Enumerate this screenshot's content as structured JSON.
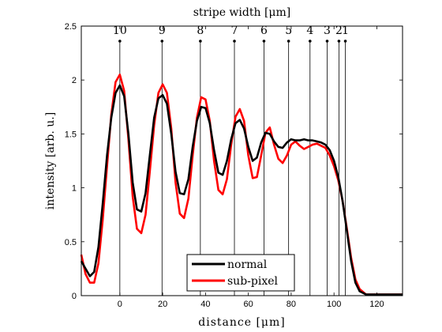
{
  "chart_data": {
    "type": "line",
    "xlabel": "distance [μm]",
    "ylabel": "intensity [arb. u.]",
    "top_axis_label": "stripe width [μm]",
    "xlim": [
      -18,
      132
    ],
    "ylim": [
      0,
      2.5
    ],
    "x_ticks": [
      0,
      20,
      40,
      60,
      80,
      100,
      120
    ],
    "y_ticks": [
      0,
      0.5,
      1,
      1.5,
      2,
      2.5
    ],
    "y_tick_labels": [
      "0",
      "0.5",
      "1",
      "1.5",
      "2",
      "2.5"
    ],
    "grid": false,
    "legend_position": "bottom-center",
    "stripe_markers": [
      {
        "label": "10",
        "x": 0
      },
      {
        "label": "9",
        "x": 19.7
      },
      {
        "label": "8",
        "x": 37.6
      },
      {
        "label": "7",
        "x": 53.5
      },
      {
        "label": "6",
        "x": 67.3
      },
      {
        "label": "5",
        "x": 78.8
      },
      {
        "label": "4",
        "x": 88.8
      },
      {
        "label": "3",
        "x": 96.8
      },
      {
        "label": "2",
        "x": 102.3
      },
      {
        "label": "1",
        "x": 105.3
      }
    ],
    "series": [
      {
        "name": "normal",
        "color": "#000000",
        "x": [
          -18,
          -16,
          -14,
          -12,
          -10,
          -8,
          -6,
          -4,
          -2,
          0,
          2,
          4,
          6,
          8,
          10,
          12,
          14,
          16,
          18,
          20,
          22,
          24,
          26,
          28,
          30,
          32,
          34,
          36,
          38,
          40,
          42,
          44,
          46,
          48,
          50,
          52,
          54,
          56,
          58,
          60,
          62,
          64,
          66,
          68,
          70,
          72,
          74,
          76,
          78,
          80,
          82,
          84,
          86,
          88,
          90,
          92,
          94,
          96,
          98,
          100,
          102,
          104,
          106,
          108,
          110,
          112,
          115,
          120,
          125,
          132
        ],
        "y": [
          0.32,
          0.25,
          0.18,
          0.22,
          0.45,
          0.85,
          1.3,
          1.65,
          1.88,
          1.95,
          1.85,
          1.5,
          1.05,
          0.8,
          0.78,
          0.95,
          1.3,
          1.65,
          1.83,
          1.86,
          1.78,
          1.5,
          1.15,
          0.95,
          0.94,
          1.08,
          1.38,
          1.62,
          1.75,
          1.74,
          1.6,
          1.35,
          1.14,
          1.12,
          1.25,
          1.45,
          1.6,
          1.63,
          1.55,
          1.38,
          1.25,
          1.28,
          1.42,
          1.51,
          1.5,
          1.43,
          1.38,
          1.37,
          1.42,
          1.45,
          1.44,
          1.44,
          1.45,
          1.44,
          1.44,
          1.43,
          1.42,
          1.4,
          1.35,
          1.25,
          1.1,
          0.88,
          0.6,
          0.32,
          0.12,
          0.04,
          0.01,
          0.01,
          0.01,
          0.01
        ]
      },
      {
        "name": "sub-pixel",
        "color": "#ff0000",
        "x": [
          -18,
          -16,
          -14,
          -12,
          -10,
          -8,
          -6,
          -4,
          -2,
          0,
          2,
          4,
          6,
          8,
          10,
          12,
          14,
          16,
          18,
          20,
          22,
          24,
          26,
          28,
          30,
          32,
          34,
          36,
          38,
          40,
          42,
          44,
          46,
          48,
          50,
          52,
          54,
          56,
          58,
          60,
          62,
          64,
          66,
          68,
          70,
          72,
          74,
          76,
          78,
          80,
          82,
          84,
          86,
          88,
          90,
          92,
          94,
          96,
          98,
          100,
          102,
          104,
          106,
          108,
          110,
          112,
          115,
          120,
          125,
          132
        ],
        "y": [
          0.38,
          0.2,
          0.12,
          0.12,
          0.3,
          0.7,
          1.2,
          1.68,
          1.98,
          2.05,
          1.9,
          1.45,
          0.92,
          0.62,
          0.58,
          0.75,
          1.15,
          1.58,
          1.88,
          1.96,
          1.88,
          1.55,
          1.05,
          0.76,
          0.72,
          0.9,
          1.3,
          1.65,
          1.84,
          1.82,
          1.62,
          1.25,
          0.98,
          0.94,
          1.08,
          1.4,
          1.66,
          1.73,
          1.62,
          1.3,
          1.09,
          1.1,
          1.3,
          1.51,
          1.56,
          1.4,
          1.27,
          1.23,
          1.3,
          1.4,
          1.43,
          1.39,
          1.36,
          1.38,
          1.4,
          1.41,
          1.39,
          1.37,
          1.3,
          1.2,
          1.07,
          0.88,
          0.62,
          0.35,
          0.15,
          0.06,
          0.01,
          0.01,
          0.01,
          0.01
        ]
      }
    ]
  }
}
